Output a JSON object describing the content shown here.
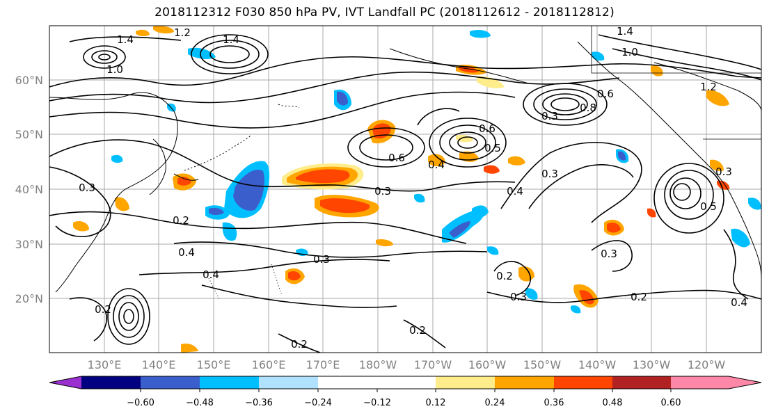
{
  "title": "2018112312 F030 850 hPa PV, IVT Landfall PC (2018112612 - 2018112812)",
  "lat_labels": [
    "60°N",
    "50°N",
    "40°N",
    "30°N",
    "20°N"
  ],
  "lon_labels": [
    "130°E",
    "140°E",
    "150°E",
    "160°E",
    "170°E",
    "180°W",
    "170°W",
    "160°W",
    "150°W",
    "140°W",
    "130°W",
    "120°W"
  ],
  "colorbar": {
    "colors": [
      "#9b30d0",
      "#000080",
      "#3a5fcd",
      "#00bfff",
      "#b0e2ff",
      "#ffffff",
      "#ffec8b",
      "#ffa500",
      "#ff4500",
      "#b22222",
      "#ff88a8"
    ],
    "tick_labels": [
      "−0.60",
      "−0.48",
      "−0.36",
      "−0.24",
      "−0.12",
      "0.12",
      "0.24",
      "0.36",
      "0.48",
      "0.60"
    ]
  },
  "contour_labels": [
    "1.4",
    "1.2",
    "1.0",
    "1.4",
    "0.6",
    "0.6",
    "0.4",
    "0.5",
    "0.3",
    "0.4",
    "0.3",
    "0.8",
    "0.6",
    "0.3",
    "0.2",
    "0.4",
    "0.3",
    "0.4",
    "0.2",
    "0.3",
    "0.2",
    "0.2",
    "0.2",
    "0.3",
    "0.3",
    "0.5",
    "0.4",
    "0.3",
    "0.2",
    "1.0",
    "1.2",
    "1.4"
  ]
}
